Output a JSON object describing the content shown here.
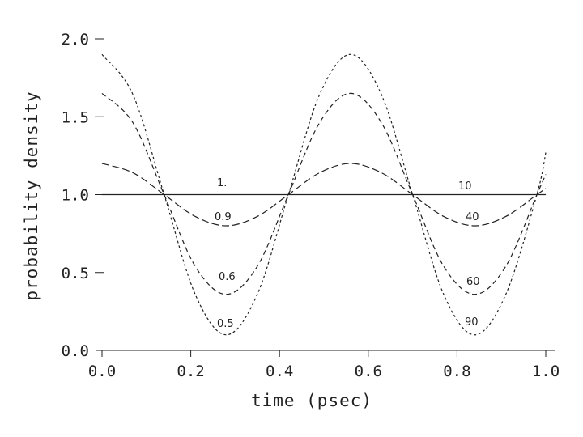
{
  "chart_data": {
    "type": "line",
    "title": "",
    "xlabel": "time (psec)",
    "ylabel": "probability density",
    "xlim": [
      0.0,
      1.0
    ],
    "ylim": [
      0.0,
      2.0
    ],
    "x_ticks": [
      "0.0",
      "0.2",
      "0.4",
      "0.6",
      "0.8",
      "1.0"
    ],
    "y_ticks": [
      "0.0",
      "0.5",
      "1.0",
      "1.5",
      "2.0"
    ],
    "grid": false,
    "legend": "none",
    "series": [
      {
        "labels": [
          "1.",
          "10"
        ],
        "dash": "",
        "x": [
          0.0,
          0.14,
          0.28,
          0.42,
          0.56,
          0.7,
          0.84,
          0.98,
          1.0
        ],
        "y": [
          1.0,
          1.0,
          1.0,
          1.0,
          1.0,
          1.0,
          1.0,
          1.0,
          1.0
        ]
      },
      {
        "labels": [
          "0.9",
          "40"
        ],
        "dash": "9,4",
        "x": [
          0.0,
          0.07,
          0.14,
          0.21,
          0.28,
          0.35,
          0.42,
          0.49,
          0.56,
          0.63,
          0.7,
          0.77,
          0.84,
          0.91,
          0.98,
          1.0
        ],
        "y": [
          1.2,
          1.14,
          1.0,
          0.86,
          0.8,
          0.86,
          1.0,
          1.14,
          1.2,
          1.14,
          1.0,
          0.86,
          0.8,
          0.86,
          1.0,
          1.04
        ]
      },
      {
        "labels": [
          "0.6",
          "60"
        ],
        "dash": "6,4",
        "x": [
          0.0,
          0.07,
          0.14,
          0.21,
          0.28,
          0.35,
          0.42,
          0.49,
          0.56,
          0.63,
          0.7,
          0.77,
          0.84,
          0.91,
          0.98,
          1.0
        ],
        "y": [
          1.65,
          1.46,
          1.0,
          0.54,
          0.36,
          0.54,
          1.0,
          1.46,
          1.65,
          1.46,
          1.0,
          0.54,
          0.36,
          0.54,
          1.0,
          1.13
        ]
      },
      {
        "labels": [
          "0.5",
          "90"
        ],
        "dash": "3,3",
        "x": [
          0.0,
          0.07,
          0.14,
          0.21,
          0.28,
          0.35,
          0.42,
          0.49,
          0.56,
          0.63,
          0.7,
          0.77,
          0.84,
          0.91,
          0.98,
          1.0
        ],
        "y": [
          1.9,
          1.64,
          1.0,
          0.36,
          0.1,
          0.36,
          1.0,
          1.64,
          1.9,
          1.64,
          1.0,
          0.36,
          0.1,
          0.36,
          1.0,
          1.27
        ]
      }
    ]
  }
}
